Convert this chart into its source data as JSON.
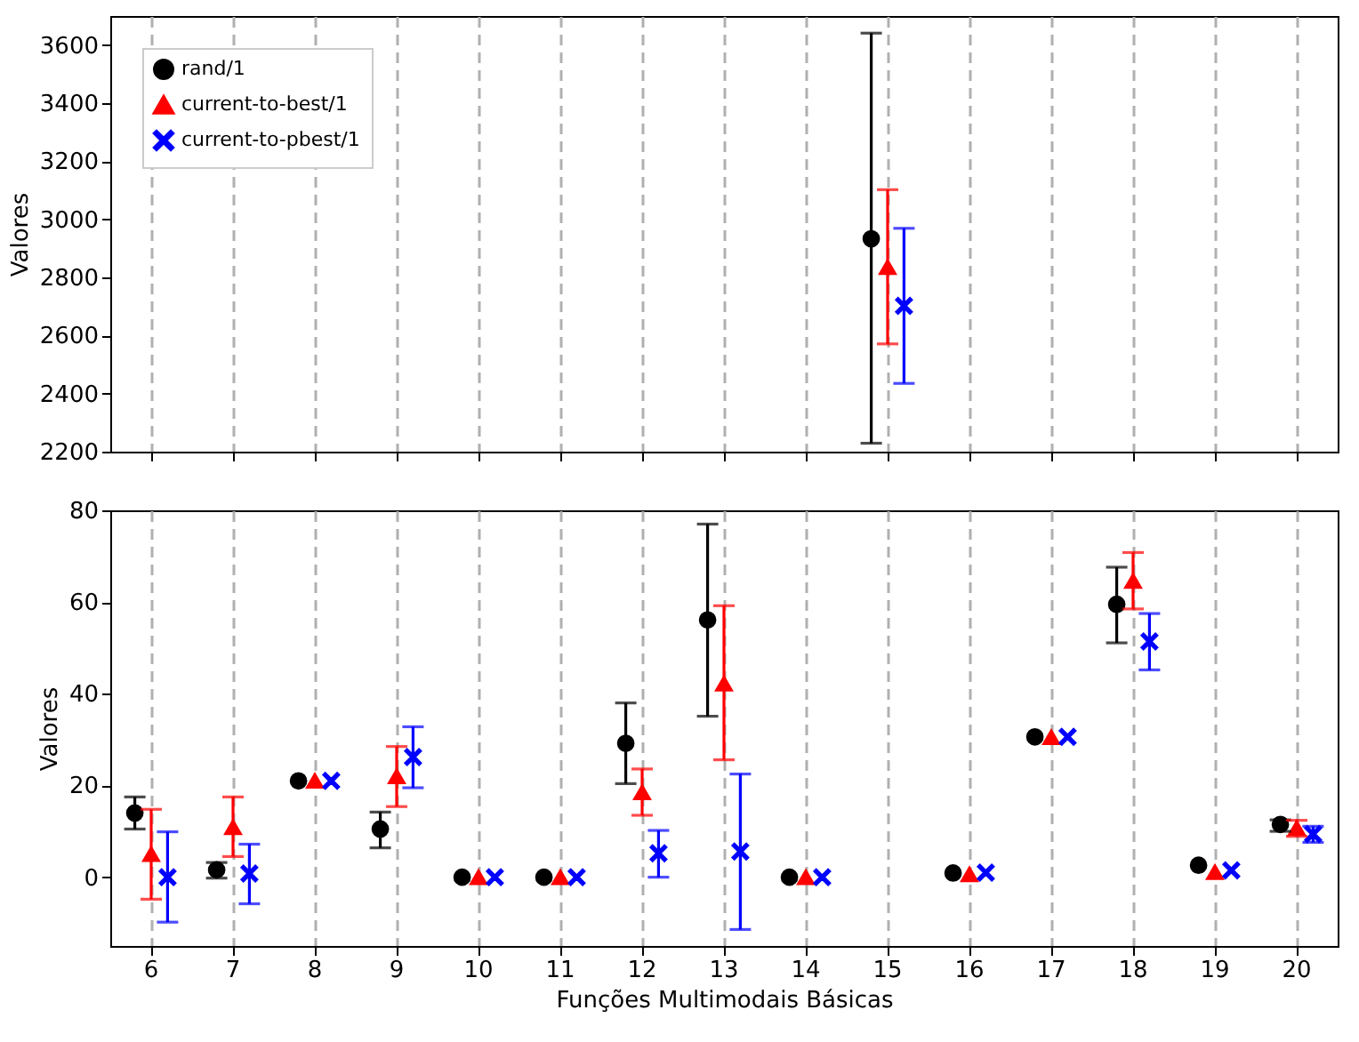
{
  "chart_data": [
    {
      "type": "scatter",
      "ylabel": "Valores",
      "categories": [
        "6",
        "7",
        "8",
        "9",
        "10",
        "11",
        "12",
        "13",
        "14",
        "15",
        "16",
        "17",
        "18",
        "19",
        "20"
      ],
      "ylim": [
        2200,
        3700
      ],
      "yticks": [
        2200,
        2400,
        2600,
        2800,
        3000,
        3200,
        3400,
        3600
      ],
      "grid": "x",
      "legend": "top left",
      "tick_labels": "y",
      "series": [
        {
          "name": "rand/1",
          "color": "#000000",
          "marker": "circle",
          "values": [
            null,
            null,
            null,
            null,
            null,
            null,
            null,
            null,
            null,
            2933,
            null,
            null,
            null,
            null,
            null
          ],
          "errors": [
            null,
            null,
            null,
            null,
            null,
            null,
            null,
            null,
            null,
            [
              2229,
              3641
            ],
            null,
            null,
            null,
            null,
            null
          ]
        },
        {
          "name": "current-to-best/1",
          "color": "#ff0000",
          "marker": "triangle",
          "values": [
            null,
            null,
            null,
            null,
            null,
            null,
            null,
            null,
            null,
            2835,
            null,
            null,
            null,
            null,
            null
          ],
          "errors": [
            null,
            null,
            null,
            null,
            null,
            null,
            null,
            null,
            null,
            [
              2571,
              3102
            ],
            null,
            null,
            null,
            null,
            null
          ]
        },
        {
          "name": "current-to-pbest/1",
          "color": "#0000ff",
          "marker": "cross",
          "values": [
            null,
            null,
            null,
            null,
            null,
            null,
            null,
            null,
            null,
            2702,
            null,
            null,
            null,
            null,
            null
          ],
          "errors": [
            null,
            null,
            null,
            null,
            null,
            null,
            null,
            null,
            null,
            [
              2435,
              2969
            ],
            null,
            null,
            null,
            null,
            null
          ]
        }
      ]
    },
    {
      "type": "scatter",
      "ylabel": "Valores",
      "xlabel": "Funções Multimodais Básicas",
      "categories": [
        "6",
        "7",
        "8",
        "9",
        "10",
        "11",
        "12",
        "13",
        "14",
        "15",
        "16",
        "17",
        "18",
        "19",
        "20"
      ],
      "ylim": [
        -15,
        80
      ],
      "yticks": [
        0,
        20,
        40,
        60,
        80
      ],
      "grid": "x",
      "series": [
        {
          "name": "rand/1",
          "color": "#000000",
          "marker": "circle",
          "values": [
            14,
            1.6,
            21,
            10.5,
            0,
            0,
            29.2,
            56.1,
            0,
            null,
            0.9,
            30.6,
            59.5,
            2.6,
            11.5
          ],
          "errors": [
            [
              10.5,
              17.5
            ],
            [
              -0.2,
              3.2
            ],
            null,
            [
              6.4,
              14.2
            ],
            null,
            null,
            [
              20.4,
              38
            ],
            [
              35.1,
              77
            ],
            null,
            null,
            null,
            null,
            [
              51.1,
              67.6
            ],
            null,
            [
              10,
              12.5
            ]
          ]
        },
        {
          "name": "current-to-best/1",
          "color": "#ff0000",
          "marker": "triangle",
          "values": [
            5,
            10.9,
            21,
            22,
            0,
            0,
            18.5,
            42.2,
            0,
            null,
            0.6,
            30.5,
            64.6,
            1.1,
            10.7
          ],
          "errors": [
            [
              -4.8,
              14.8
            ],
            [
              4.5,
              17.5
            ],
            null,
            [
              15.4,
              28.5
            ],
            null,
            null,
            [
              13.5,
              23.6
            ],
            [
              25.6,
              59.2
            ],
            null,
            null,
            null,
            null,
            [
              58.5,
              70.8
            ],
            null,
            [
              8.9,
              12.4
            ]
          ]
        },
        {
          "name": "current-to-pbest/1",
          "color": "#0000ff",
          "marker": "cross",
          "values": [
            0,
            0.8,
            21,
            26.2,
            0,
            0,
            5.2,
            5.6,
            0,
            null,
            1,
            30.6,
            51.4,
            1.5,
            9.4
          ],
          "errors": [
            [
              -9.8,
              9.9
            ],
            [
              -5.8,
              7.2
            ],
            null,
            [
              19.5,
              32.8
            ],
            null,
            null,
            [
              0,
              10.2
            ],
            [
              -11.4,
              22.5
            ],
            null,
            null,
            null,
            null,
            [
              45.2,
              57.5
            ],
            null,
            [
              7.6,
              11.1
            ]
          ]
        }
      ]
    }
  ]
}
